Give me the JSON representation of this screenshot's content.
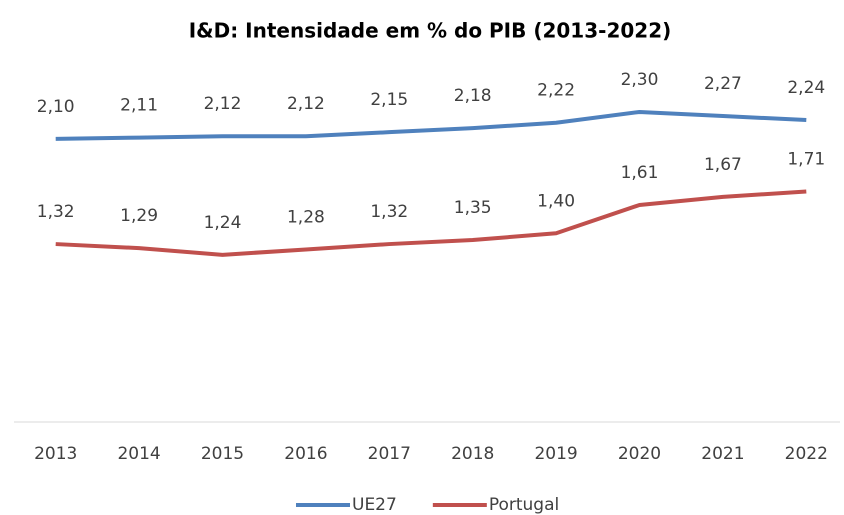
{
  "chart_data": {
    "type": "line",
    "title": "I&D: Intensidade em % do PIB (2013-2022)",
    "categories": [
      "2013",
      "2014",
      "2015",
      "2016",
      "2017",
      "2018",
      "2019",
      "2020",
      "2021",
      "2022"
    ],
    "series": [
      {
        "name": "UE27",
        "color": "#4f81bd",
        "values": [
          2.1,
          2.11,
          2.12,
          2.12,
          2.15,
          2.18,
          2.22,
          2.3,
          2.27,
          2.24
        ],
        "value_labels": [
          "2,10",
          "2,11",
          "2,12",
          "2,12",
          "2,15",
          "2,18",
          "2,22",
          "2,30",
          "2,27",
          "2,24"
        ]
      },
      {
        "name": "Portugal",
        "color": "#c0504d",
        "values": [
          1.32,
          1.29,
          1.24,
          1.28,
          1.32,
          1.35,
          1.4,
          1.61,
          1.67,
          1.71
        ],
        "value_labels": [
          "1,32",
          "1,29",
          "1,24",
          "1,28",
          "1,32",
          "1,35",
          "1,40",
          "1,61",
          "1,67",
          "1,71"
        ]
      }
    ],
    "ylim": [
      0,
      2.5
    ],
    "legend": "bottom"
  }
}
